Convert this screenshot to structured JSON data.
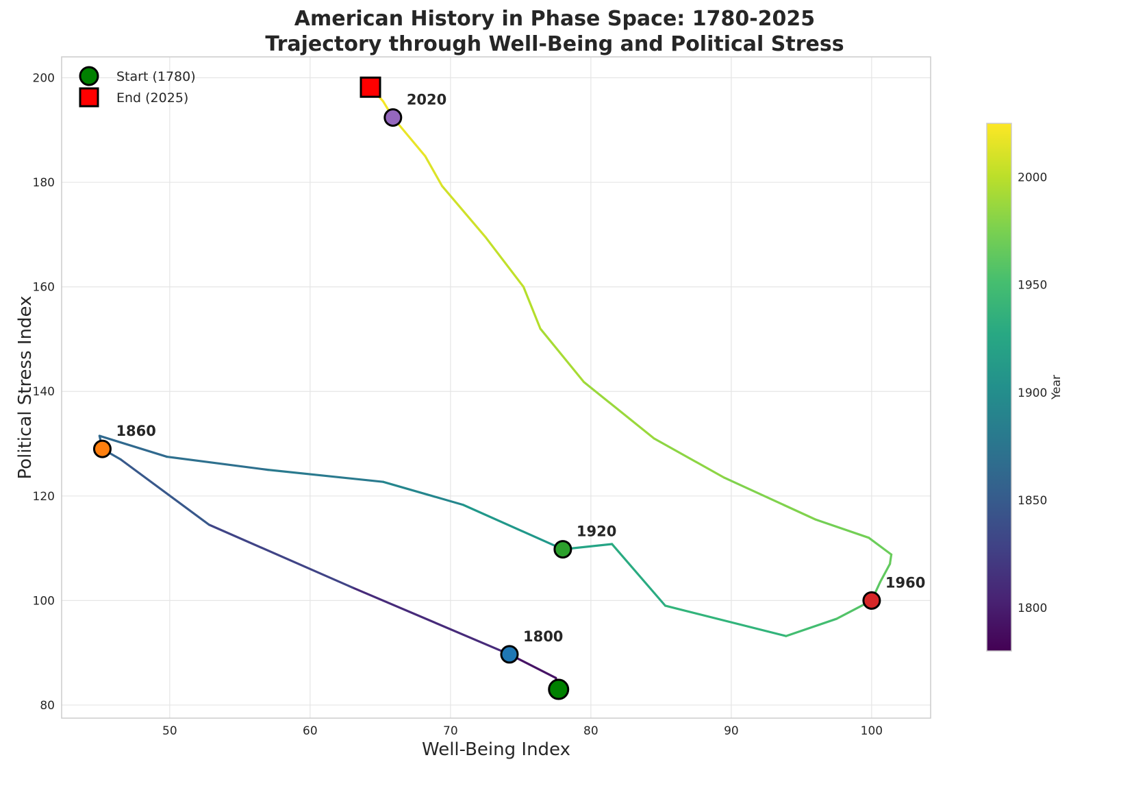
{
  "chart_data": {
    "type": "line",
    "title": [
      "American History in Phase Space: 1780-2025",
      "Trajectory through Well-Being and Political Stress"
    ],
    "xlabel": "Well-Being Index",
    "ylabel": "Political Stress Index",
    "xlim": [
      42.3,
      104.2
    ],
    "ylim": [
      77.5,
      204
    ],
    "xticks": [
      50,
      60,
      70,
      80,
      90,
      100
    ],
    "yticks": [
      80,
      100,
      120,
      140,
      160,
      180,
      200
    ],
    "grid": true,
    "colorbar": {
      "label": "Year",
      "range": [
        1780,
        2025
      ],
      "ticks": [
        1800,
        1850,
        1900,
        1950,
        2000
      ],
      "colormap": "viridis"
    },
    "series": [
      {
        "name": "trajectory",
        "points": [
          {
            "year": 1780,
            "x": 77.7,
            "y": 83.0
          },
          {
            "year": 1785,
            "x": 77.5,
            "y": 85.2
          },
          {
            "year": 1800,
            "x": 74.2,
            "y": 89.7
          },
          {
            "year": 1820,
            "x": 63.0,
            "y": 102.5
          },
          {
            "year": 1840,
            "x": 52.8,
            "y": 114.5
          },
          {
            "year": 1855,
            "x": 46.5,
            "y": 127.0
          },
          {
            "year": 1860,
            "x": 45.2,
            "y": 129.0
          },
          {
            "year": 1861,
            "x": 45.0,
            "y": 131.5
          },
          {
            "year": 1865,
            "x": 49.8,
            "y": 127.5
          },
          {
            "year": 1875,
            "x": 57.0,
            "y": 125.0
          },
          {
            "year": 1885,
            "x": 65.2,
            "y": 122.7
          },
          {
            "year": 1900,
            "x": 70.9,
            "y": 118.3
          },
          {
            "year": 1920,
            "x": 78.0,
            "y": 109.8
          },
          {
            "year": 1925,
            "x": 81.5,
            "y": 110.8
          },
          {
            "year": 1935,
            "x": 85.3,
            "y": 99.0
          },
          {
            "year": 1945,
            "x": 93.9,
            "y": 93.2
          },
          {
            "year": 1955,
            "x": 97.5,
            "y": 96.5
          },
          {
            "year": 1960,
            "x": 100.0,
            "y": 100.0
          },
          {
            "year": 1963,
            "x": 100.6,
            "y": 103.5
          },
          {
            "year": 1966,
            "x": 101.3,
            "y": 107.0
          },
          {
            "year": 1968,
            "x": 101.4,
            "y": 108.8
          },
          {
            "year": 1970,
            "x": 99.8,
            "y": 112.0
          },
          {
            "year": 1975,
            "x": 96.0,
            "y": 115.5
          },
          {
            "year": 1980,
            "x": 89.5,
            "y": 123.5
          },
          {
            "year": 1985,
            "x": 84.5,
            "y": 131.0
          },
          {
            "year": 1990,
            "x": 79.5,
            "y": 141.8
          },
          {
            "year": 1995,
            "x": 76.4,
            "y": 152.0
          },
          {
            "year": 2000,
            "x": 75.2,
            "y": 160.0
          },
          {
            "year": 2005,
            "x": 72.5,
            "y": 169.5
          },
          {
            "year": 2010,
            "x": 69.4,
            "y": 179.3
          },
          {
            "year": 2015,
            "x": 68.2,
            "y": 185.0
          },
          {
            "year": 2020,
            "x": 65.9,
            "y": 192.4
          },
          {
            "year": 2022,
            "x": 65.2,
            "y": 195.5
          },
          {
            "year": 2025,
            "x": 64.3,
            "y": 198.2
          }
        ]
      }
    ],
    "milestones": [
      {
        "label": "1800",
        "x": 74.2,
        "y": 89.7,
        "color": "#1f77b4"
      },
      {
        "label": "1860",
        "x": 45.2,
        "y": 129.0,
        "color": "#ff7f0e"
      },
      {
        "label": "1920",
        "x": 78.0,
        "y": 109.8,
        "color": "#2ca02c"
      },
      {
        "label": "1960",
        "x": 100.0,
        "y": 100.0,
        "color": "#d62728"
      },
      {
        "label": "2020",
        "x": 65.9,
        "y": 192.4,
        "color": "#9467bd"
      }
    ],
    "start": {
      "label": "Start (1780)",
      "x": 77.7,
      "y": 83.0,
      "color": "#008000"
    },
    "end": {
      "label": "End (2025)",
      "x": 64.3,
      "y": 198.2,
      "color": "#ff0000"
    },
    "legend": {
      "placement": "top-left",
      "entries": [
        "Start (1780)",
        "End (2025)"
      ]
    }
  }
}
